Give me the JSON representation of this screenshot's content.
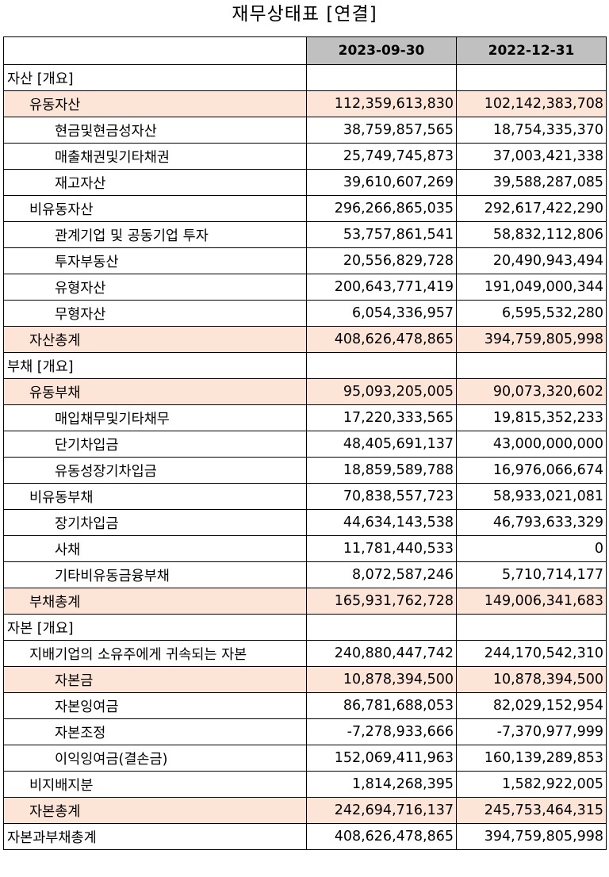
{
  "title": "재무상태표 [연결]",
  "columns": [
    "2023-09-30",
    "2022-12-31"
  ],
  "rows": [
    {
      "label": "자산 [개요]",
      "level": 0,
      "highlight": false,
      "v1": "",
      "v2": ""
    },
    {
      "label": "유동자산",
      "level": 1,
      "highlight": true,
      "v1": "112,359,613,830",
      "v2": "102,142,383,708"
    },
    {
      "label": "현금및현금성자산",
      "level": 2,
      "highlight": false,
      "v1": "38,759,857,565",
      "v2": "18,754,335,370"
    },
    {
      "label": "매출채권및기타채권",
      "level": 2,
      "highlight": false,
      "v1": "25,749,745,873",
      "v2": "37,003,421,338"
    },
    {
      "label": "재고자산",
      "level": 2,
      "highlight": false,
      "v1": "39,610,607,269",
      "v2": "39,588,287,085"
    },
    {
      "label": "비유동자산",
      "level": 1,
      "highlight": false,
      "v1": "296,266,865,035",
      "v2": "292,617,422,290"
    },
    {
      "label": "관계기업 및 공동기업 투자",
      "level": 2,
      "highlight": false,
      "v1": "53,757,861,541",
      "v2": "58,832,112,806"
    },
    {
      "label": "투자부동산",
      "level": 2,
      "highlight": false,
      "v1": "20,556,829,728",
      "v2": "20,490,943,494"
    },
    {
      "label": "유형자산",
      "level": 2,
      "highlight": false,
      "v1": "200,643,771,419",
      "v2": "191,049,000,344"
    },
    {
      "label": "무형자산",
      "level": 2,
      "highlight": false,
      "v1": "6,054,336,957",
      "v2": "6,595,532,280"
    },
    {
      "label": "자산총계",
      "level": 1,
      "highlight": true,
      "v1": "408,626,478,865",
      "v2": "394,759,805,998"
    },
    {
      "label": "부채 [개요]",
      "level": 0,
      "highlight": false,
      "v1": "",
      "v2": ""
    },
    {
      "label": "유동부채",
      "level": 1,
      "highlight": true,
      "v1": "95,093,205,005",
      "v2": "90,073,320,602"
    },
    {
      "label": "매입채무및기타채무",
      "level": 2,
      "highlight": false,
      "v1": "17,220,333,565",
      "v2": "19,815,352,233"
    },
    {
      "label": "단기차입금",
      "level": 2,
      "highlight": false,
      "v1": "48,405,691,137",
      "v2": "43,000,000,000"
    },
    {
      "label": "유동성장기차입금",
      "level": 2,
      "highlight": false,
      "v1": "18,859,589,788",
      "v2": "16,976,066,674"
    },
    {
      "label": "비유동부채",
      "level": 1,
      "highlight": false,
      "v1": "70,838,557,723",
      "v2": "58,933,021,081"
    },
    {
      "label": "장기차입금",
      "level": 2,
      "highlight": false,
      "v1": "44,634,143,538",
      "v2": "46,793,633,329"
    },
    {
      "label": "사채",
      "level": 2,
      "highlight": false,
      "v1": "11,781,440,533",
      "v2": "0"
    },
    {
      "label": "기타비유동금융부채",
      "level": 2,
      "highlight": false,
      "v1": "8,072,587,246",
      "v2": "5,710,714,177"
    },
    {
      "label": "부채총계",
      "level": 1,
      "highlight": true,
      "v1": "165,931,762,728",
      "v2": "149,006,341,683"
    },
    {
      "label": "자본 [개요]",
      "level": 0,
      "highlight": false,
      "v1": "",
      "v2": ""
    },
    {
      "label": "지배기업의 소유주에게 귀속되는 자본",
      "level": 1,
      "highlight": false,
      "v1": "240,880,447,742",
      "v2": "244,170,542,310"
    },
    {
      "label": "자본금",
      "level": 2,
      "highlight": true,
      "v1": "10,878,394,500",
      "v2": "10,878,394,500"
    },
    {
      "label": "자본잉여금",
      "level": 2,
      "highlight": false,
      "v1": "86,781,688,053",
      "v2": "82,029,152,954"
    },
    {
      "label": "자본조정",
      "level": 2,
      "highlight": false,
      "v1": "-7,278,933,666",
      "v2": "-7,370,977,999"
    },
    {
      "label": "이익잉여금(결손금)",
      "level": 2,
      "highlight": false,
      "v1": "152,069,411,963",
      "v2": "160,139,289,853"
    },
    {
      "label": "비지배지분",
      "level": 1,
      "highlight": false,
      "v1": "1,814,268,395",
      "v2": "1,582,922,005"
    },
    {
      "label": "자본총계",
      "level": 1,
      "highlight": true,
      "v1": "242,694,716,137",
      "v2": "245,753,464,315"
    },
    {
      "label": "자본과부채총계",
      "level": 0,
      "highlight": false,
      "v1": "408,626,478,865",
      "v2": "394,759,805,998"
    }
  ]
}
